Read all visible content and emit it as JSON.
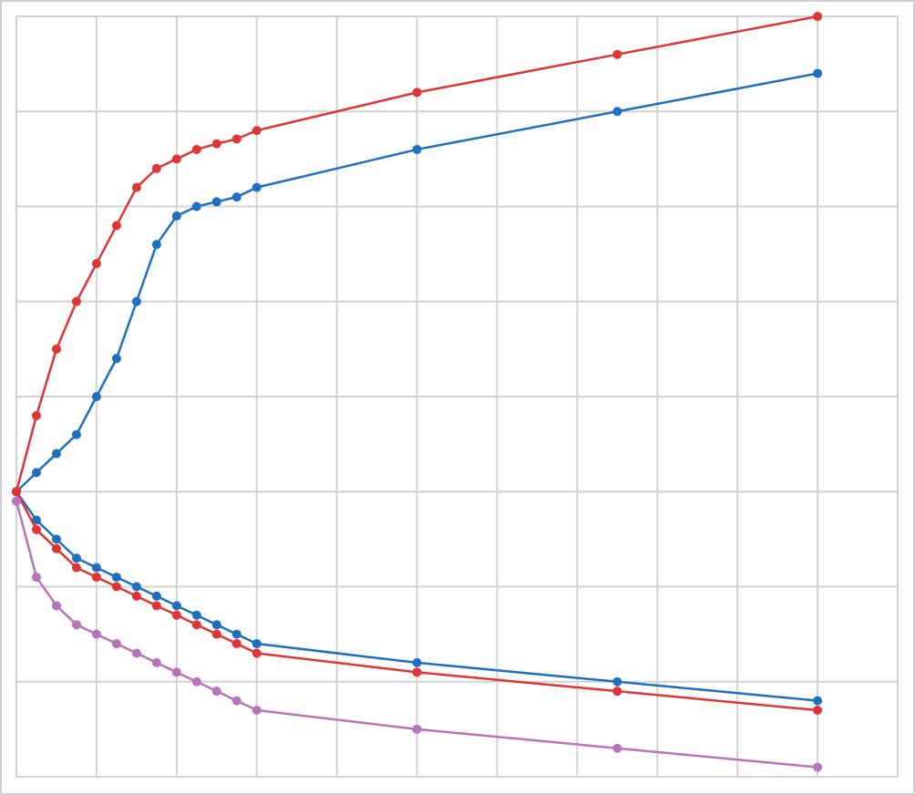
{
  "chart_data": {
    "type": "line",
    "x": [
      0,
      0.25,
      0.5,
      0.75,
      1,
      1.25,
      1.5,
      1.75,
      2,
      2.25,
      2.5,
      2.75,
      3,
      5,
      7.5,
      10
    ],
    "series": [
      {
        "color": "#e03535",
        "values": [
          3.0,
          3.8,
          4.5,
          5.0,
          5.4,
          5.8,
          6.2,
          6.4,
          6.5,
          6.6,
          6.66,
          6.71,
          6.8,
          7.2,
          7.6,
          8.0
        ]
      },
      {
        "color": "#1f6fbf",
        "values": [
          3.0,
          3.2,
          3.4,
          3.6,
          4.0,
          4.4,
          5.0,
          5.6,
          5.9,
          6.0,
          6.05,
          6.1,
          6.2,
          6.6,
          7.0,
          7.4
        ]
      },
      {
        "color": "#1f6fbf",
        "values": [
          3.0,
          2.7,
          2.5,
          2.3,
          2.2,
          2.1,
          2.0,
          1.9,
          1.8,
          1.7,
          1.6,
          1.5,
          1.4,
          1.2,
          1.0,
          0.8
        ]
      },
      {
        "color": "#e03535",
        "values": [
          3.0,
          2.6,
          2.4,
          2.2,
          2.1,
          2.0,
          1.9,
          1.8,
          1.7,
          1.6,
          1.5,
          1.4,
          1.3,
          1.1,
          0.9,
          0.7
        ]
      },
      {
        "color": "#b874b8",
        "values": [
          2.9,
          2.1,
          1.8,
          1.6,
          1.5,
          1.4,
          1.3,
          1.2,
          1.1,
          1.0,
          0.9,
          0.8,
          0.7,
          0.5,
          0.3,
          0.1
        ]
      }
    ],
    "xlim": [
      0,
      11
    ],
    "xticks": [
      0,
      1,
      2,
      3,
      4,
      5,
      6,
      7,
      8,
      9,
      10,
      11
    ],
    "ylim": [
      0,
      8
    ],
    "yticks": [
      0,
      1,
      2,
      3,
      4,
      5,
      6,
      7,
      8
    ],
    "grid": true
  }
}
